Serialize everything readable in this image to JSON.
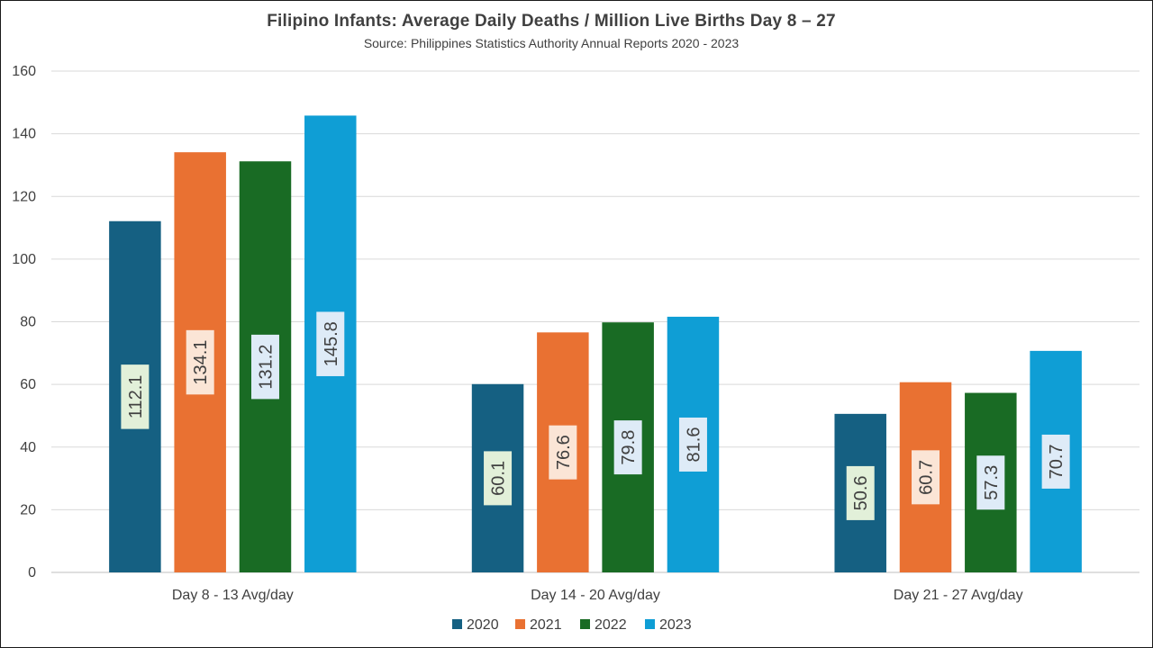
{
  "chart_data": {
    "type": "bar",
    "title": "Filipino Infants: Average Daily Deaths / Million Live Births Day 8 – 27",
    "subtitle": "Source: Philippines Statistics Authority Annual Reports 2020 - 2023",
    "categories": [
      "Day 8 - 13 Avg/day",
      "Day 14 - 20 Avg/day",
      "Day 21 - 27 Avg/day"
    ],
    "series": [
      {
        "name": "2020",
        "color": "#156082",
        "label_bg": "#e2f0d9",
        "values": [
          112.1,
          60.1,
          50.6
        ]
      },
      {
        "name": "2021",
        "color": "#e97132",
        "label_bg": "#fbe5d6",
        "values": [
          134.1,
          76.6,
          60.7
        ]
      },
      {
        "name": "2022",
        "color": "#196b24",
        "label_bg": "#deebf7",
        "values": [
          131.2,
          79.8,
          57.3
        ]
      },
      {
        "name": "2023",
        "color": "#0f9ed5",
        "label_bg": "#deebf7",
        "values": [
          145.8,
          81.6,
          70.7
        ]
      }
    ],
    "ylim": [
      0,
      160
    ],
    "yticks": [
      0,
      20,
      40,
      60,
      80,
      100,
      120,
      140,
      160
    ],
    "grid": true,
    "legend": "bottom",
    "data_labels": "rotated inside bars"
  }
}
